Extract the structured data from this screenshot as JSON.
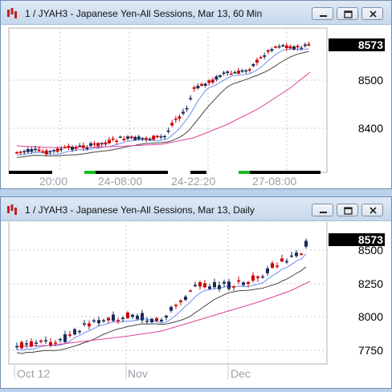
{
  "windows": [
    {
      "title": "1 / JYAH3 - Japanese Yen-All Sessions, Mar 13, 60 Min",
      "last_price": "8573",
      "price_labels": [
        "8500",
        "8400"
      ],
      "time_labels": [
        "20:00",
        "24-08:00",
        "24-22:20",
        "27-08:00"
      ],
      "colors": {
        "bar_up": "#1a2a5a",
        "bar_down": "#cc0000",
        "ma_fast": "#6a8ff0",
        "ma_mid": "#444444",
        "ma_slow": "#e0409a",
        "last_price_bg": "#000000"
      }
    },
    {
      "title": "1 / JYAH3 - Japanese Yen-All Sessions, Mar 13, Daily",
      "last_price": "8573",
      "price_labels": [
        "8500",
        "8250",
        "8000",
        "7750"
      ],
      "time_labels": [
        "Oct 12",
        "Nov",
        "Dec"
      ],
      "colors": {
        "bar_up": "#1a2a5a",
        "bar_down": "#cc0000",
        "ma_fast": "#6a8ff0",
        "ma_mid": "#444444",
        "ma_slow": "#e0409a",
        "last_price_bg": "#000000"
      }
    }
  ],
  "icons": {
    "app": "chart-app-icon",
    "minimize": "minimize-icon",
    "restore": "restore-icon",
    "close": "close-icon"
  }
}
